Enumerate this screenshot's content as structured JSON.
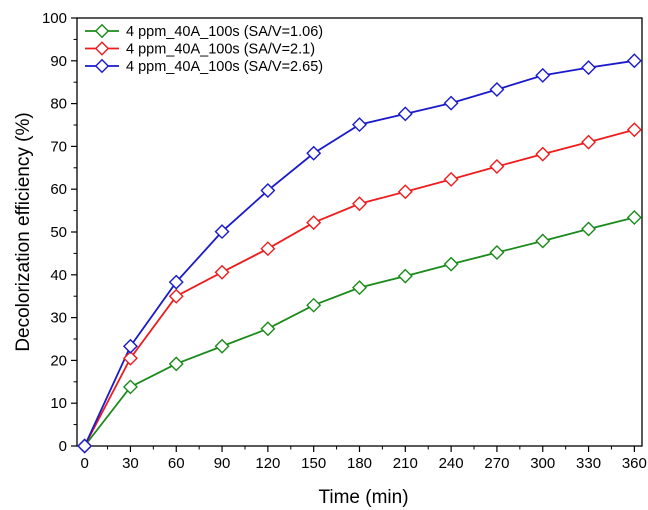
{
  "chart_data": {
    "type": "line",
    "xlabel": "Time (min)",
    "ylabel": "Decolorization efficiency (%)",
    "xlim": [
      -5,
      365
    ],
    "ylim": [
      0,
      100
    ],
    "x_ticks": [
      0,
      30,
      60,
      90,
      120,
      150,
      180,
      210,
      240,
      270,
      300,
      330,
      360
    ],
    "x_tick_labels": [
      "0",
      "30",
      "60",
      "90",
      "120",
      "150",
      "180",
      "210",
      "240",
      "270",
      "300",
      "330",
      "360"
    ],
    "y_ticks": [
      0,
      10,
      20,
      30,
      40,
      50,
      60,
      70,
      80,
      90,
      100
    ],
    "y_tick_labels": [
      "0",
      "10",
      "20",
      "30",
      "40",
      "50",
      "60",
      "70",
      "80",
      "90",
      "100"
    ],
    "grid": false,
    "legend_position": "top-left",
    "marker": "diamond-open",
    "x": [
      0,
      30,
      60,
      90,
      120,
      150,
      180,
      210,
      240,
      270,
      300,
      330,
      360
    ],
    "series": [
      {
        "name": "4 ppm_40A_100s (SA/V=1.06)",
        "color": "#1a8a1a",
        "values": [
          0,
          13.8,
          19.2,
          23.3,
          27.4,
          32.9,
          37.0,
          39.7,
          42.5,
          45.2,
          47.9,
          50.7,
          53.4
        ]
      },
      {
        "name": "4 ppm_40A_100s (SA/V=2.1)",
        "color": "#ee1c1c",
        "values": [
          0,
          20.5,
          35.0,
          40.6,
          46.1,
          52.2,
          56.6,
          59.4,
          62.3,
          65.3,
          68.2,
          71.0,
          73.9
        ]
      },
      {
        "name": "4 ppm_40A_100s (SA/V=2.65)",
        "color": "#1a1acc",
        "values": [
          0,
          23.3,
          38.3,
          50.1,
          59.7,
          68.4,
          75.1,
          77.6,
          80.1,
          83.3,
          86.6,
          88.4,
          90.0
        ]
      }
    ]
  }
}
